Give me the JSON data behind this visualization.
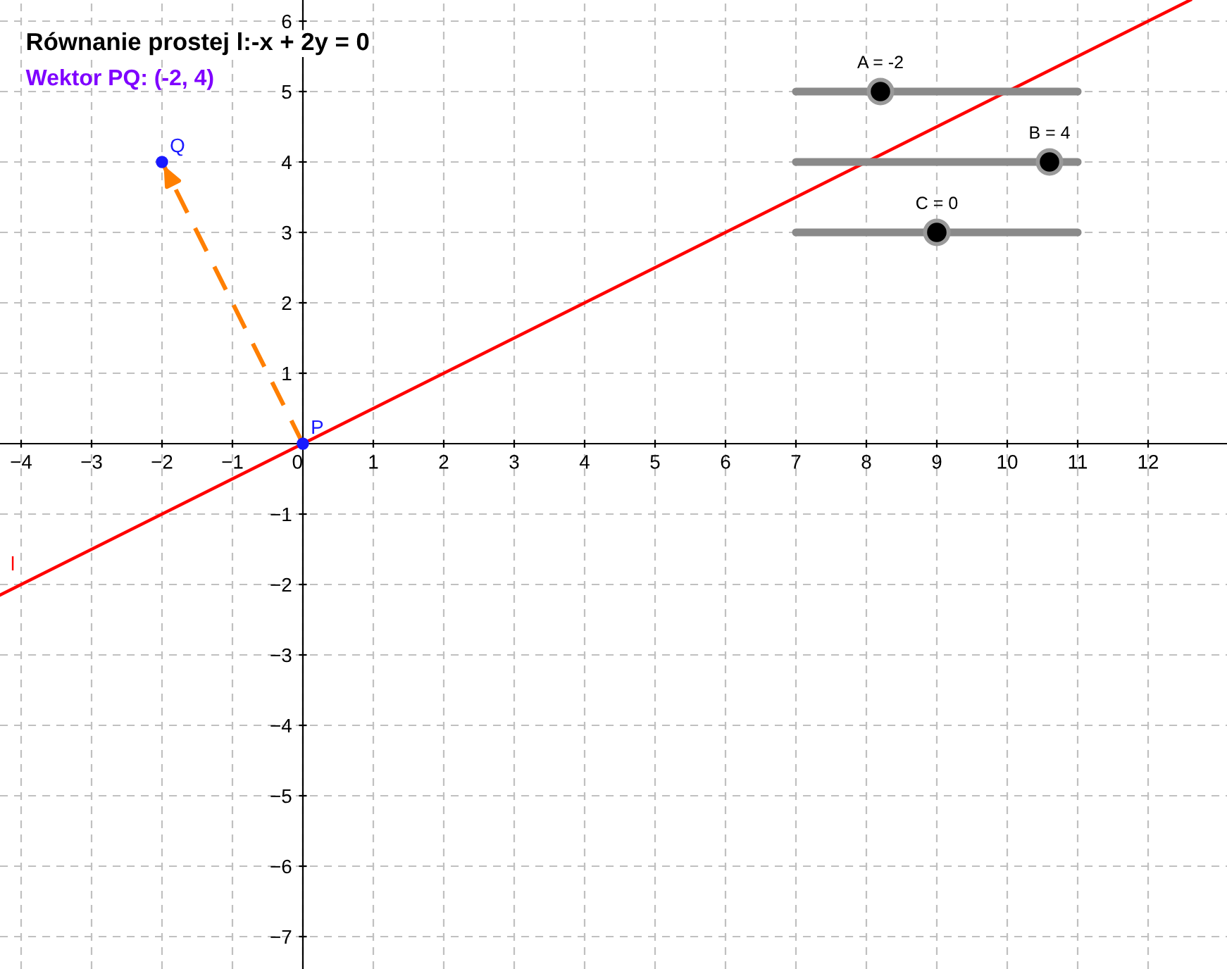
{
  "chart_data": {
    "type": "line",
    "title": "Równanie prostej l:-x + 2y = 0",
    "subtitle": "Wektor PQ: (-2, 4)",
    "series": [
      {
        "name": "l",
        "color": "#ff0000",
        "x": [
          -4.3,
          12.6
        ],
        "values": [
          -2.15,
          6.3
        ]
      },
      {
        "color": "#ff7f00",
        "line_style": "dashed",
        "x": [
          0,
          -2
        ],
        "values": [
          0,
          4
        ]
      },
      {
        "type": "scatter",
        "color": "#1a1aff",
        "marker": "circle",
        "x": [
          0,
          -2
        ],
        "values": [
          0,
          4
        ]
      }
    ],
    "annotations": [
      {
        "text": "P",
        "x": 0,
        "y": 0
      },
      {
        "text": "Q",
        "x": -2,
        "y": 4
      },
      "A = -2",
      "B = 4",
      "C = 0"
    ],
    "xlim": [
      -4.3,
      13.12
    ],
    "ylim": [
      -7.46,
      6.3
    ],
    "xticks": [
      {
        "value": -4,
        "label": "−4"
      },
      {
        "value": -3,
        "label": "−3"
      },
      {
        "value": -2,
        "label": "−2"
      },
      {
        "value": -1,
        "label": "−1"
      },
      0,
      1,
      2,
      3,
      4,
      5,
      6,
      7,
      8,
      9,
      10,
      11,
      12
    ],
    "yticks": [
      {
        "value": -7,
        "label": "−7"
      },
      {
        "value": -6,
        "label": "−6"
      },
      {
        "value": -5,
        "label": "−5"
      },
      {
        "value": -4,
        "label": "−4"
      },
      {
        "value": -3,
        "label": "−3"
      },
      {
        "value": -2,
        "label": "−2"
      },
      {
        "value": -1,
        "label": "−1"
      },
      1,
      2,
      3,
      4,
      5,
      6
    ],
    "grid": true,
    "legend": false
  }
}
